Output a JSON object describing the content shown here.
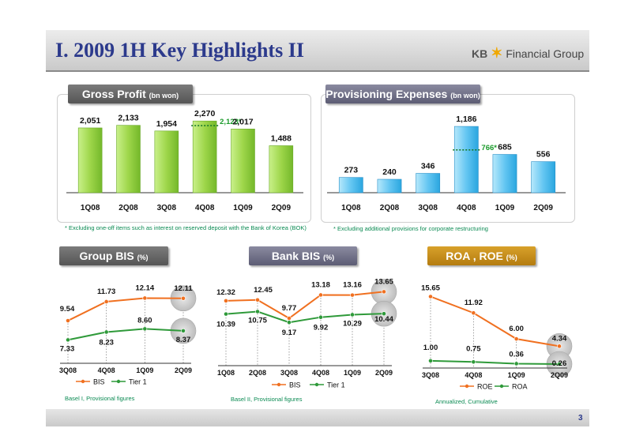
{
  "header": {
    "title": "I. 2009 1H Key Highlights II",
    "logo_left": "KB",
    "logo_right": "Financial Group",
    "page_number": "3"
  },
  "colors": {
    "green_bar": "#9ed64a",
    "blue_bar": "#64c6f2",
    "orange_line": "#f07020",
    "green_line": "#2f9a3a",
    "title_blue": "#2c3a8c",
    "note_green": "#0a8a52"
  },
  "notes": {
    "gross_profit": "* Excluding one-off items such as interest on reserved deposit with the Bank of Korea (BOK)",
    "provisioning": "* Excluding additional provisions for corporate restructuring",
    "group_bis": "Basel I, Provisional figures",
    "bank_bis": "Basel II, Provisional figures",
    "roa_roe": "Annualized, Cumulative"
  },
  "labels": {
    "gross_profit_title": "Gross Profit",
    "gross_profit_unit": "(bn won)",
    "provisioning_title": "Provisioning Expenses",
    "provisioning_unit": "(bn won)",
    "group_bis_title": "Group BIS",
    "group_bis_unit": "(%)",
    "bank_bis_title": "Bank BIS",
    "bank_bis_unit": "(%)",
    "roa_title": "ROA , ROE",
    "roa_unit": "(%)"
  },
  "chart_data": [
    {
      "id": "gross_profit",
      "type": "bar",
      "categories": [
        "1Q08",
        "2Q08",
        "3Q08",
        "4Q08",
        "1Q09",
        "2Q09"
      ],
      "values": [
        2051,
        2133,
        1954,
        2270,
        2017,
        1488
      ],
      "value_labels": [
        "2,051",
        "2,133",
        "1,954",
        "2,270",
        "2,017",
        "1,488"
      ],
      "annotation": {
        "category": "4Q08",
        "value": 2123,
        "label": "2,123*"
      },
      "ylim": [
        0,
        2400
      ]
    },
    {
      "id": "provisioning",
      "type": "bar",
      "categories": [
        "1Q08",
        "2Q08",
        "3Q08",
        "4Q08",
        "1Q09",
        "2Q09"
      ],
      "values": [
        273,
        240,
        346,
        1186,
        685,
        556
      ],
      "value_labels": [
        "273",
        "240",
        "346",
        "1,186",
        "685",
        "556"
      ],
      "annotation": {
        "category": "4Q08",
        "value": 766,
        "label": "766*"
      },
      "ylim": [
        0,
        1300
      ]
    },
    {
      "id": "group_bis",
      "type": "line",
      "categories": [
        "3Q08",
        "4Q08",
        "1Q09",
        "2Q09"
      ],
      "series": [
        {
          "name": "BIS",
          "values": [
            9.54,
            11.73,
            12.14,
            12.11
          ],
          "labels": [
            "9.54",
            "11.73",
            "12.14",
            "12.11"
          ]
        },
        {
          "name": "Tier 1",
          "values": [
            7.33,
            8.23,
            8.6,
            8.37
          ],
          "labels": [
            "7.33",
            "8.23",
            "8.60",
            "8.37"
          ]
        }
      ],
      "legend": "bottom"
    },
    {
      "id": "bank_bis",
      "type": "line",
      "categories": [
        "1Q08",
        "2Q08",
        "3Q08",
        "4Q08",
        "1Q09",
        "2Q09"
      ],
      "series": [
        {
          "name": "BIS",
          "values": [
            12.32,
            12.45,
            9.77,
            13.18,
            13.16,
            13.65
          ],
          "labels": [
            "12.32",
            "12.45",
            "9.77",
            "13.18",
            "13.16",
            "13.65"
          ]
        },
        {
          "name": "Tier 1",
          "values": [
            10.39,
            10.75,
            9.17,
            9.92,
            10.29,
            10.44
          ],
          "labels": [
            "10.39",
            "10.75",
            "9.17",
            "9.92",
            "10.29",
            "10.44"
          ]
        }
      ],
      "legend": "bottom"
    },
    {
      "id": "roa_roe",
      "type": "line",
      "categories": [
        "3Q08",
        "4Q08",
        "1Q09",
        "2Q09"
      ],
      "series": [
        {
          "name": "ROE",
          "values": [
            15.65,
            11.92,
            6.0,
            4.34
          ],
          "labels": [
            "15.65",
            "11.92",
            "6.00",
            "4.34"
          ]
        },
        {
          "name": "ROA",
          "values": [
            1.0,
            0.75,
            0.36,
            0.26
          ],
          "labels": [
            "1.00",
            "0.75",
            "0.36",
            "0.26"
          ]
        }
      ],
      "legend": "bottom"
    }
  ]
}
